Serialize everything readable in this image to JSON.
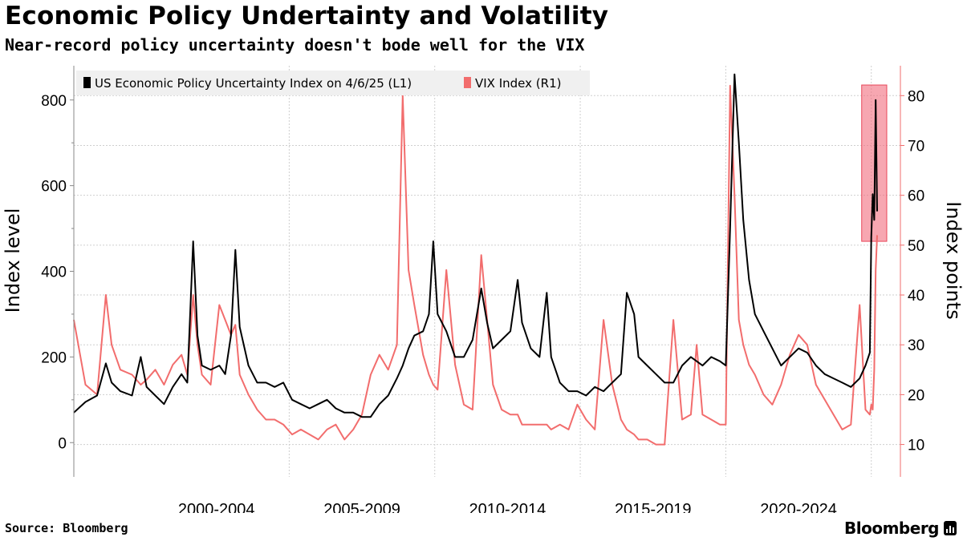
{
  "title": "Economic Policy Undertainty and Volatility",
  "subtitle": "Near-record policy uncertainty doesn't bode well for the VIX",
  "source": "Source: Bloomberg",
  "brand": "Bloomberg",
  "chart_data": {
    "type": "line",
    "legend_placement": "top-left",
    "x_tick_labels": [
      "2000-2004",
      "2005-2009",
      "2010-2014",
      "2015-2019",
      "2020-2024"
    ],
    "x_range": [
      1997.6,
      2026.0
    ],
    "left_axis": {
      "label": "Index level",
      "range": [
        -80,
        880
      ],
      "ticks": [
        0,
        200,
        400,
        600,
        800
      ],
      "labels": [
        "0",
        "200",
        "400",
        "600",
        "800"
      ]
    },
    "right_axis": {
      "label": "Index points",
      "range": [
        3.5,
        86
      ],
      "ticks": [
        10,
        20,
        30,
        40,
        50,
        60,
        70,
        80
      ],
      "labels": [
        "10",
        "20",
        "30",
        "40",
        "50",
        "60",
        "70",
        "80"
      ]
    },
    "highlight": {
      "x_from": 2025.0,
      "x_to": 2025.2,
      "y_from_left": 470,
      "y_to_left": 835
    },
    "series": [
      {
        "name": "US Economic Policy Uncertainty Index on 4/6/25 (L1)",
        "axis": "left",
        "color": "#000000",
        "points": [
          [
            1997.6,
            70
          ],
          [
            1998.0,
            95
          ],
          [
            1998.4,
            110
          ],
          [
            1998.7,
            185
          ],
          [
            1998.9,
            140
          ],
          [
            1999.2,
            120
          ],
          [
            1999.6,
            110
          ],
          [
            1999.9,
            200
          ],
          [
            2000.1,
            130
          ],
          [
            2000.4,
            110
          ],
          [
            2000.7,
            90
          ],
          [
            2001.0,
            130
          ],
          [
            2001.3,
            160
          ],
          [
            2001.5,
            140
          ],
          [
            2001.7,
            470
          ],
          [
            2001.85,
            250
          ],
          [
            2002.0,
            180
          ],
          [
            2002.3,
            170
          ],
          [
            2002.6,
            180
          ],
          [
            2002.8,
            160
          ],
          [
            2003.0,
            250
          ],
          [
            2003.15,
            450
          ],
          [
            2003.3,
            270
          ],
          [
            2003.6,
            180
          ],
          [
            2003.9,
            140
          ],
          [
            2004.2,
            140
          ],
          [
            2004.5,
            130
          ],
          [
            2004.8,
            140
          ],
          [
            2005.1,
            100
          ],
          [
            2005.4,
            90
          ],
          [
            2005.7,
            80
          ],
          [
            2006.0,
            90
          ],
          [
            2006.3,
            100
          ],
          [
            2006.6,
            80
          ],
          [
            2006.9,
            70
          ],
          [
            2007.2,
            70
          ],
          [
            2007.5,
            60
          ],
          [
            2007.8,
            60
          ],
          [
            2008.1,
            90
          ],
          [
            2008.4,
            110
          ],
          [
            2008.7,
            150
          ],
          [
            2008.9,
            180
          ],
          [
            2009.1,
            220
          ],
          [
            2009.3,
            250
          ],
          [
            2009.6,
            260
          ],
          [
            2009.8,
            300
          ],
          [
            2009.95,
            470
          ],
          [
            2010.1,
            300
          ],
          [
            2010.4,
            260
          ],
          [
            2010.7,
            200
          ],
          [
            2011.0,
            200
          ],
          [
            2011.3,
            240
          ],
          [
            2011.6,
            360
          ],
          [
            2011.8,
            280
          ],
          [
            2012.0,
            220
          ],
          [
            2012.3,
            240
          ],
          [
            2012.6,
            260
          ],
          [
            2012.85,
            380
          ],
          [
            2013.0,
            280
          ],
          [
            2013.3,
            220
          ],
          [
            2013.6,
            200
          ],
          [
            2013.85,
            350
          ],
          [
            2014.0,
            200
          ],
          [
            2014.3,
            140
          ],
          [
            2014.6,
            120
          ],
          [
            2014.9,
            120
          ],
          [
            2015.2,
            110
          ],
          [
            2015.5,
            130
          ],
          [
            2015.8,
            120
          ],
          [
            2016.1,
            140
          ],
          [
            2016.4,
            160
          ],
          [
            2016.6,
            350
          ],
          [
            2016.85,
            300
          ],
          [
            2017.0,
            200
          ],
          [
            2017.3,
            180
          ],
          [
            2017.6,
            160
          ],
          [
            2017.9,
            140
          ],
          [
            2018.2,
            140
          ],
          [
            2018.5,
            180
          ],
          [
            2018.8,
            200
          ],
          [
            2019.0,
            190
          ],
          [
            2019.2,
            180
          ],
          [
            2019.5,
            200
          ],
          [
            2019.8,
            190
          ],
          [
            2020.0,
            180
          ],
          [
            2020.15,
            500
          ],
          [
            2020.3,
            860
          ],
          [
            2020.45,
            700
          ],
          [
            2020.6,
            520
          ],
          [
            2020.8,
            380
          ],
          [
            2021.0,
            300
          ],
          [
            2021.3,
            260
          ],
          [
            2021.6,
            220
          ],
          [
            2021.9,
            180
          ],
          [
            2022.2,
            200
          ],
          [
            2022.5,
            220
          ],
          [
            2022.8,
            210
          ],
          [
            2023.1,
            180
          ],
          [
            2023.4,
            160
          ],
          [
            2023.7,
            150
          ],
          [
            2024.0,
            140
          ],
          [
            2024.3,
            130
          ],
          [
            2024.6,
            150
          ],
          [
            2024.8,
            180
          ],
          [
            2024.95,
            210
          ],
          [
            2025.0,
            480
          ],
          [
            2025.05,
            580
          ],
          [
            2025.1,
            520
          ],
          [
            2025.15,
            800
          ],
          [
            2025.2,
            540
          ]
        ]
      },
      {
        "name": "VIX Index (R1)",
        "axis": "right",
        "color": "#f26d6d",
        "points": [
          [
            1997.6,
            35
          ],
          [
            1998.0,
            22
          ],
          [
            1998.4,
            20
          ],
          [
            1998.7,
            40
          ],
          [
            1998.9,
            30
          ],
          [
            1999.2,
            25
          ],
          [
            1999.6,
            24
          ],
          [
            1999.9,
            22
          ],
          [
            2000.1,
            23
          ],
          [
            2000.4,
            25
          ],
          [
            2000.7,
            22
          ],
          [
            2001.0,
            26
          ],
          [
            2001.3,
            28
          ],
          [
            2001.5,
            24
          ],
          [
            2001.7,
            40
          ],
          [
            2001.85,
            30
          ],
          [
            2002.0,
            24
          ],
          [
            2002.3,
            22
          ],
          [
            2002.6,
            38
          ],
          [
            2002.8,
            35
          ],
          [
            2003.0,
            32
          ],
          [
            2003.15,
            34
          ],
          [
            2003.3,
            24
          ],
          [
            2003.6,
            20
          ],
          [
            2003.9,
            17
          ],
          [
            2004.2,
            15
          ],
          [
            2004.5,
            15
          ],
          [
            2004.8,
            14
          ],
          [
            2005.1,
            12
          ],
          [
            2005.4,
            13
          ],
          [
            2005.7,
            12
          ],
          [
            2006.0,
            11
          ],
          [
            2006.3,
            13
          ],
          [
            2006.6,
            14
          ],
          [
            2006.9,
            11
          ],
          [
            2007.2,
            13
          ],
          [
            2007.5,
            16
          ],
          [
            2007.8,
            24
          ],
          [
            2008.1,
            28
          ],
          [
            2008.4,
            25
          ],
          [
            2008.7,
            30
          ],
          [
            2008.9,
            80
          ],
          [
            2009.1,
            45
          ],
          [
            2009.3,
            38
          ],
          [
            2009.6,
            28
          ],
          [
            2009.8,
            24
          ],
          [
            2009.95,
            22
          ],
          [
            2010.1,
            21
          ],
          [
            2010.4,
            45
          ],
          [
            2010.7,
            26
          ],
          [
            2011.0,
            18
          ],
          [
            2011.3,
            17
          ],
          [
            2011.6,
            48
          ],
          [
            2011.8,
            35
          ],
          [
            2012.0,
            22
          ],
          [
            2012.3,
            17
          ],
          [
            2012.6,
            16
          ],
          [
            2012.85,
            16
          ],
          [
            2013.0,
            14
          ],
          [
            2013.3,
            14
          ],
          [
            2013.6,
            14
          ],
          [
            2013.85,
            14
          ],
          [
            2014.0,
            13
          ],
          [
            2014.3,
            14
          ],
          [
            2014.6,
            13
          ],
          [
            2014.9,
            18
          ],
          [
            2015.2,
            15
          ],
          [
            2015.5,
            13
          ],
          [
            2015.8,
            35
          ],
          [
            2016.1,
            22
          ],
          [
            2016.4,
            15
          ],
          [
            2016.6,
            13
          ],
          [
            2016.85,
            12
          ],
          [
            2017.0,
            11
          ],
          [
            2017.3,
            11
          ],
          [
            2017.6,
            10
          ],
          [
            2017.9,
            10
          ],
          [
            2018.2,
            35
          ],
          [
            2018.5,
            15
          ],
          [
            2018.8,
            16
          ],
          [
            2019.0,
            30
          ],
          [
            2019.2,
            16
          ],
          [
            2019.5,
            15
          ],
          [
            2019.8,
            14
          ],
          [
            2020.0,
            14
          ],
          [
            2020.15,
            82
          ],
          [
            2020.3,
            60
          ],
          [
            2020.45,
            35
          ],
          [
            2020.6,
            30
          ],
          [
            2020.8,
            26
          ],
          [
            2021.0,
            24
          ],
          [
            2021.3,
            20
          ],
          [
            2021.6,
            18
          ],
          [
            2021.9,
            22
          ],
          [
            2022.2,
            28
          ],
          [
            2022.5,
            32
          ],
          [
            2022.8,
            30
          ],
          [
            2023.1,
            22
          ],
          [
            2023.4,
            19
          ],
          [
            2023.7,
            16
          ],
          [
            2024.0,
            13
          ],
          [
            2024.3,
            14
          ],
          [
            2024.6,
            38
          ],
          [
            2024.8,
            17
          ],
          [
            2024.95,
            16
          ],
          [
            2025.0,
            18
          ],
          [
            2025.05,
            17
          ],
          [
            2025.1,
            25
          ],
          [
            2025.15,
            45
          ],
          [
            2025.2,
            52
          ]
        ]
      }
    ]
  }
}
